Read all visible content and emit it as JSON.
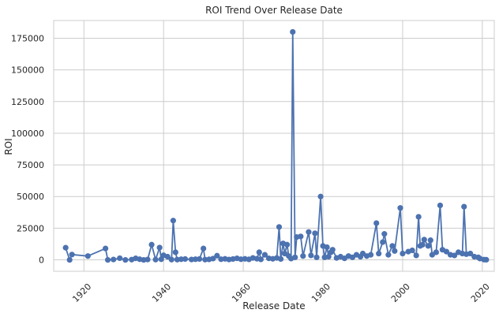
{
  "chart_data": {
    "type": "line",
    "title": "ROI Trend Over Release Date",
    "xlabel": "Release Date",
    "ylabel": "ROI",
    "x_is_date": true,
    "xlim": [
      "1912-06-01",
      "2022-12-31"
    ],
    "ylim": [
      -9000,
      189000
    ],
    "x_ticks": [
      1920,
      1940,
      1960,
      1980,
      2000,
      2020
    ],
    "x_tick_labels": [
      "1920",
      "1940",
      "1960",
      "1980",
      "2000",
      "2020"
    ],
    "y_ticks": [
      0,
      25000,
      50000,
      75000,
      100000,
      125000,
      150000,
      175000
    ],
    "y_tick_labels": [
      "0",
      "25000",
      "50000",
      "75000",
      "100000",
      "125000",
      "150000",
      "175000"
    ],
    "grid": true,
    "marker": "circle",
    "color": "#4c72b0",
    "series": [
      {
        "name": "",
        "points": [
          [
            "1915-06",
            9600
          ],
          [
            "1916-06",
            0
          ],
          [
            "1917-01",
            4200
          ],
          [
            "1921-01",
            3000
          ],
          [
            "1925-06",
            9000
          ],
          [
            "1926-01",
            0
          ],
          [
            "1927-06",
            300
          ],
          [
            "1929-01",
            1300
          ],
          [
            "1930-06",
            0
          ],
          [
            "1932-01",
            200
          ],
          [
            "1933-01",
            1200
          ],
          [
            "1934-01",
            500
          ],
          [
            "1935-01",
            0
          ],
          [
            "1936-01",
            300
          ],
          [
            "1937-01",
            12000
          ],
          [
            "1938-01",
            200
          ],
          [
            "1939-01",
            9700
          ],
          [
            "1939-06",
            500
          ],
          [
            "1940-01",
            3600
          ],
          [
            "1941-01",
            2500
          ],
          [
            "1942-01",
            200
          ],
          [
            "1942-06",
            31000
          ],
          [
            "1943-01",
            6000
          ],
          [
            "1943-06",
            200
          ],
          [
            "1944-06",
            500
          ],
          [
            "1945-06",
            700
          ],
          [
            "1947-01",
            300
          ],
          [
            "1948-01",
            500
          ],
          [
            "1949-01",
            700
          ],
          [
            "1950-01",
            9000
          ],
          [
            "1950-06",
            200
          ],
          [
            "1951-06",
            400
          ],
          [
            "1952-06",
            1000
          ],
          [
            "1953-06",
            3300
          ],
          [
            "1954-06",
            500
          ],
          [
            "1955-06",
            800
          ],
          [
            "1956-06",
            300
          ],
          [
            "1957-06",
            700
          ],
          [
            "1958-06",
            1200
          ],
          [
            "1959-06",
            500
          ],
          [
            "1960-06",
            800
          ],
          [
            "1961-06",
            400
          ],
          [
            "1962-06",
            1500
          ],
          [
            "1963-06",
            900
          ],
          [
            "1964-01",
            6000
          ],
          [
            "1964-06",
            400
          ],
          [
            "1965-06",
            4000
          ],
          [
            "1966-06",
            1200
          ],
          [
            "1967-06",
            800
          ],
          [
            "1968-06",
            1500
          ],
          [
            "1969-01",
            26000
          ],
          [
            "1969-06",
            700
          ],
          [
            "1970-01",
            13000
          ],
          [
            "1970-06",
            5000
          ],
          [
            "1971-01",
            12000
          ],
          [
            "1971-06",
            3000
          ],
          [
            "1972-01",
            1000
          ],
          [
            "1972-06",
            180000
          ],
          [
            "1973-01",
            2000
          ],
          [
            "1973-06",
            18000
          ],
          [
            "1974-06",
            18500
          ],
          [
            "1975-01",
            3000
          ],
          [
            "1976-06",
            22000
          ],
          [
            "1977-01",
            3500
          ],
          [
            "1978-01",
            21000
          ],
          [
            "1978-06",
            2000
          ],
          [
            "1979-06",
            50000
          ],
          [
            "1980-01",
            11000
          ],
          [
            "1980-06",
            2000
          ],
          [
            "1981-01",
            10000
          ],
          [
            "1981-06",
            2500
          ],
          [
            "1982-01",
            6000
          ],
          [
            "1982-06",
            8000
          ],
          [
            "1983-06",
            1500
          ],
          [
            "1984-06",
            2500
          ],
          [
            "1985-06",
            1200
          ],
          [
            "1986-06",
            3000
          ],
          [
            "1987-06",
            2000
          ],
          [
            "1988-06",
            4000
          ],
          [
            "1989-06",
            2500
          ],
          [
            "1990-01",
            5000
          ],
          [
            "1991-01",
            3000
          ],
          [
            "1992-01",
            4000
          ],
          [
            "1993-06",
            29000
          ],
          [
            "1994-01",
            5000
          ],
          [
            "1995-01",
            14000
          ],
          [
            "1995-06",
            20500
          ],
          [
            "1996-06",
            4000
          ],
          [
            "1997-06",
            11000
          ],
          [
            "1998-01",
            7000
          ],
          [
            "1999-06",
            41000
          ],
          [
            "2000-01",
            5000
          ],
          [
            "2001-06",
            6500
          ],
          [
            "2002-06",
            7500
          ],
          [
            "2003-06",
            3500
          ],
          [
            "2004-01",
            34000
          ],
          [
            "2004-06",
            11000
          ],
          [
            "2005-01",
            12000
          ],
          [
            "2005-06",
            16000
          ],
          [
            "2006-06",
            11000
          ],
          [
            "2007-01",
            15500
          ],
          [
            "2007-06",
            4000
          ],
          [
            "2008-06",
            6000
          ],
          [
            "2009-06",
            43000
          ],
          [
            "2010-01",
            8000
          ],
          [
            "2011-01",
            6500
          ],
          [
            "2012-01",
            4000
          ],
          [
            "2013-01",
            3500
          ],
          [
            "2014-01",
            6000
          ],
          [
            "2015-01",
            5000
          ],
          [
            "2015-06",
            42000
          ],
          [
            "2016-01",
            4500
          ],
          [
            "2017-01",
            5000
          ],
          [
            "2018-01",
            2500
          ],
          [
            "2019-01",
            2000
          ],
          [
            "2019-06",
            1000
          ],
          [
            "2020-06",
            200
          ],
          [
            "2021-01",
            100
          ]
        ]
      }
    ]
  }
}
